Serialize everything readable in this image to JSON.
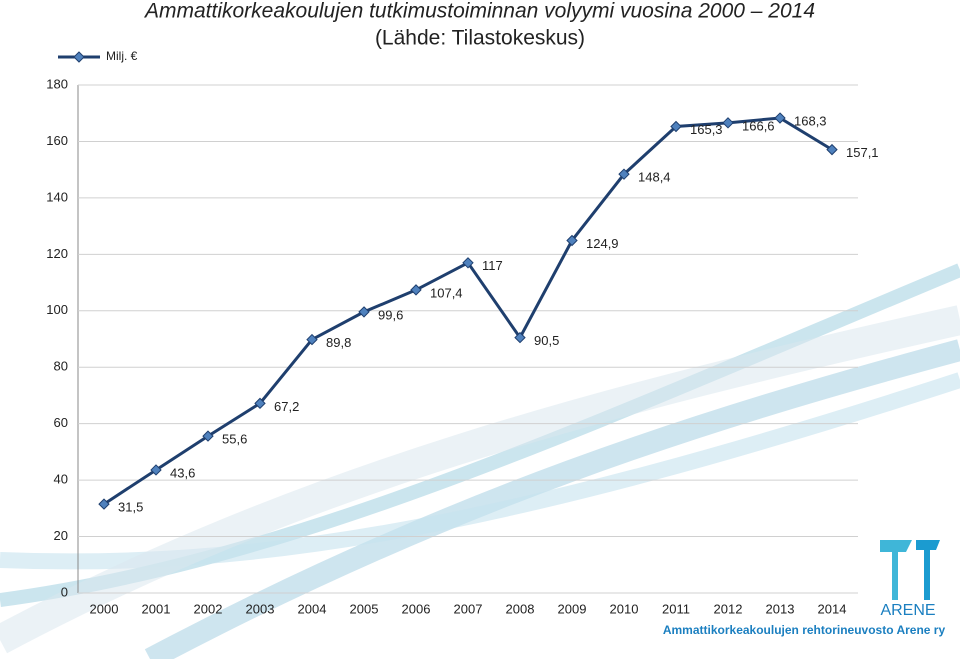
{
  "chart_data": {
    "type": "line",
    "title": "Ammattikorkeakoulujen tutkimustoiminnan volyymi vuosina 2000 – 2014",
    "subtitle": "(Lähde: Tilastokeskus)",
    "categories": [
      "2000",
      "2001",
      "2002",
      "2003",
      "2004",
      "2005",
      "2006",
      "2007",
      "2008",
      "2009",
      "2010",
      "2011",
      "2012",
      "2013",
      "2014"
    ],
    "series": [
      {
        "name": "Milj. €",
        "color": "#1f3f6e",
        "values": [
          31.5,
          43.6,
          55.6,
          67.2,
          89.8,
          99.6,
          107.4,
          117,
          90.5,
          124.9,
          148.4,
          165.3,
          166.6,
          168.3,
          157.1
        ],
        "value_labels": [
          "31,5",
          "43,6",
          "55,6",
          "67,2",
          "89,8",
          "99,6",
          "107,4",
          "117",
          "90,5",
          "124,9",
          "148,4",
          "165,3",
          "166,6",
          "168,3",
          "157,1"
        ]
      }
    ],
    "ylim": [
      0,
      180
    ],
    "yticks": [
      0,
      20,
      40,
      60,
      80,
      100,
      120,
      140,
      160,
      180
    ],
    "grid": true,
    "legend": "top-left"
  },
  "logo": {
    "name": "ARENE",
    "caption": "Ammattikorkeakoulujen rehtorineuvosto Arene ry"
  }
}
